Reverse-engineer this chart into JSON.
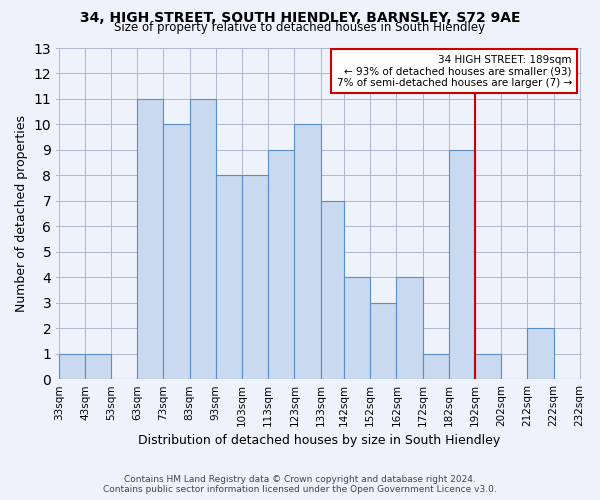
{
  "title": "34, HIGH STREET, SOUTH HIENDLEY, BARNSLEY, S72 9AE",
  "subtitle": "Size of property relative to detached houses in South Hiendley",
  "xlabel": "Distribution of detached houses by size in South Hiendley",
  "ylabel": "Number of detached properties",
  "footer_line1": "Contains HM Land Registry data © Crown copyright and database right 2024.",
  "footer_line2": "Contains public sector information licensed under the Open Government Licence v3.0.",
  "annotation_title": "34 HIGH STREET: 189sqm",
  "annotation_line1": "← 93% of detached houses are smaller (93)",
  "annotation_line2": "7% of semi-detached houses are larger (7) →",
  "bar_color": "#c9d9f0",
  "bar_edge_color": "#5b8ec4",
  "grid_color": "#b0b8d0",
  "background_color": "#eef2fb",
  "vline_color": "#cc0000",
  "bins": [
    33,
    43,
    53,
    63,
    73,
    83,
    93,
    103,
    113,
    123,
    133,
    142,
    152,
    162,
    172,
    182,
    192,
    202,
    212,
    222,
    232
  ],
  "bin_labels": [
    "33sqm",
    "43sqm",
    "53sqm",
    "63sqm",
    "73sqm",
    "83sqm",
    "93sqm",
    "103sqm",
    "113sqm",
    "123sqm",
    "133sqm",
    "142sqm",
    "152sqm",
    "162sqm",
    "172sqm",
    "182sqm",
    "192sqm",
    "202sqm",
    "212sqm",
    "222sqm",
    "232sqm"
  ],
  "counts": [
    1,
    1,
    0,
    11,
    10,
    11,
    8,
    8,
    9,
    10,
    7,
    4,
    3,
    4,
    1,
    9,
    1,
    0,
    2,
    0
  ],
  "ylim": [
    0,
    13
  ],
  "yticks": [
    0,
    1,
    2,
    3,
    4,
    5,
    6,
    7,
    8,
    9,
    10,
    11,
    12,
    13
  ]
}
